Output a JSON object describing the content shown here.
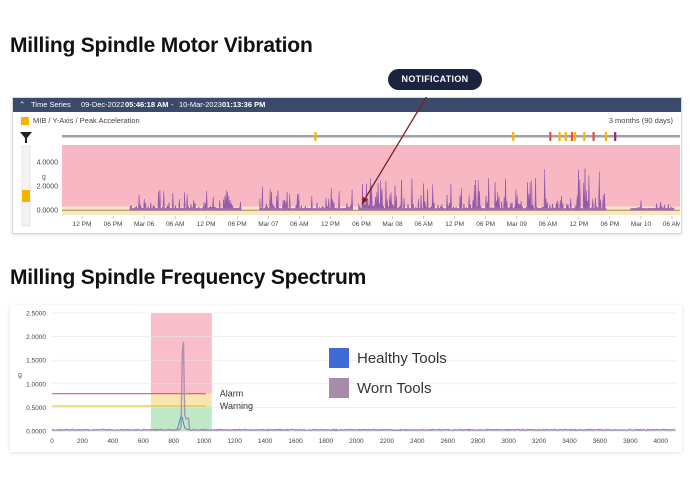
{
  "headings": {
    "vibration": "Milling Spindle Motor Vibration",
    "spectrum": "Milling Spindle Frequency Spectrum"
  },
  "notification": {
    "label": "NOTIFICATION"
  },
  "time_series": {
    "bar_label": "Time Series",
    "range_start_date": "09-Dec-2022",
    "range_start_time": "05:46:18 AM",
    "separator": "-",
    "range_end_date": "10-Mar-2023",
    "range_end_time": "01:13:36 PM",
    "sensor_label": "MIB / Y-Axis / Peak Acceleration",
    "duration": "3 months (90 days)"
  },
  "colors": {
    "alarm_zone": "#f7b8c4",
    "warning_zone": "#f9e6c2",
    "series": "#8a4fa6",
    "event": "#f5b400",
    "healthy": "#4169d8",
    "worn": "#a98aa8",
    "alarm_line": "#e45a5a",
    "warning_line": "#f0c040",
    "spec_alarm_zone": "#f8bfcb",
    "spec_warning_zone": "#f7e6b0",
    "spec_ok_zone": "#bfe8c6"
  },
  "chart_data": [
    {
      "type": "area",
      "ylabel": "g",
      "yticks": [
        "4.0000",
        "2.0000",
        "0.0000"
      ],
      "ytick_values": [
        4,
        2,
        0
      ],
      "ylim": [
        -0.4,
        5.4
      ],
      "alarm_level": 0.3,
      "xtick_labels": [
        "12 PM",
        "06 PM",
        "Mar 06",
        "06 AM",
        "12 PM",
        "06 PM",
        "Mar 07",
        "06 AM",
        "12 PM",
        "06 PM",
        "Mar 08",
        "06 AM",
        "12 PM",
        "06 PM",
        "Mar 09",
        "06 AM",
        "12 PM",
        "06 PM",
        "Mar 10",
        "06 AM"
      ],
      "segments": [
        {
          "start": 0.11,
          "end": 0.29,
          "peak": 1.7
        },
        {
          "start": 0.32,
          "end": 0.47,
          "peak": 2.1
        },
        {
          "start": 0.48,
          "end": 0.76,
          "peak": 2.8
        },
        {
          "start": 0.76,
          "end": 0.88,
          "peak": 3.6
        },
        {
          "start": 0.92,
          "end": 0.99,
          "peak": 0.8
        }
      ],
      "notification_at": 0.485,
      "event_marks": [
        0.41,
        0.73,
        0.79,
        0.805,
        0.815,
        0.825,
        0.83,
        0.845,
        0.86,
        0.88,
        0.895
      ]
    },
    {
      "type": "line",
      "ylabel": "g",
      "yticks": [
        "2.5000",
        "2.0000",
        "1.5000",
        "1.0000",
        "0.5000",
        "0.0000"
      ],
      "ytick_values": [
        2.5,
        2.0,
        1.5,
        1.0,
        0.5,
        0.0
      ],
      "ylim": [
        0,
        2.5
      ],
      "xticks": [
        0,
        200,
        400,
        600,
        800,
        1000,
        1200,
        1400,
        1600,
        1800,
        2000,
        2200,
        2400,
        2600,
        2800,
        3000,
        3200,
        3400,
        3600,
        3800,
        4000
      ],
      "xlim": [
        0,
        4100
      ],
      "alarm": {
        "label": "Alarm",
        "value": 0.79
      },
      "warning": {
        "label": "Warning",
        "value": 0.53
      },
      "alarm_band": [
        650,
        1050
      ],
      "series": [
        {
          "name": "Healthy Tools",
          "color": "#4169d8",
          "peak_x": 850,
          "peak_y": 0.3
        },
        {
          "name": "Worn Tools",
          "color": "#a98aa8",
          "peak_x": 860,
          "peak_y": 2.42
        }
      ]
    }
  ]
}
